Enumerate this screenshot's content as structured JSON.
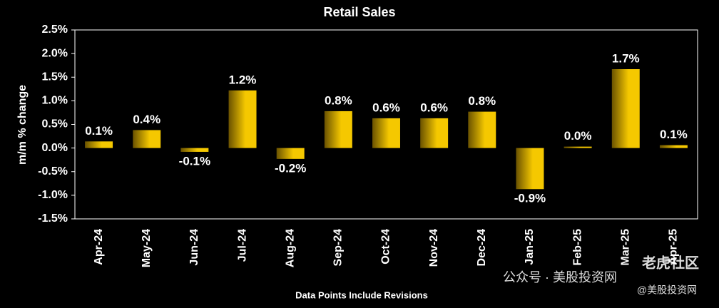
{
  "chart_data": {
    "type": "bar",
    "title": "Retail Sales",
    "ylabel": "m/m % change",
    "xlabel": "Data Points Include Revisions",
    "categories": [
      "Apr-24",
      "May-24",
      "Jun-24",
      "Jul-24",
      "Aug-24",
      "Sep-24",
      "Oct-24",
      "Nov-24",
      "Dec-24",
      "Jan-25",
      "Feb-25",
      "Mar-25",
      "Apr-25"
    ],
    "values": [
      0.14,
      0.38,
      -0.08,
      1.22,
      -0.23,
      0.78,
      0.63,
      0.63,
      0.77,
      -0.87,
      0.03,
      1.67,
      0.06
    ],
    "value_labels": [
      "0.1%",
      "0.4%",
      "-0.1%",
      "1.2%",
      "-0.2%",
      "0.8%",
      "0.6%",
      "0.6%",
      "0.8%",
      "-0.9%",
      "0.0%",
      "1.7%",
      "0.1%"
    ],
    "color": "#f5c800",
    "ylim": [
      -1.5,
      2.5
    ],
    "yticks": [
      {
        "value": -1.5,
        "label": "-1.5%"
      },
      {
        "value": -1.0,
        "label": "-1.0%"
      },
      {
        "value": -0.5,
        "label": "-0.5%"
      },
      {
        "value": 0,
        "label": "0.0%"
      },
      {
        "value": 0.5,
        "label": "0.5%"
      },
      {
        "value": 1.0,
        "label": "1.0%"
      },
      {
        "value": 1.5,
        "label": "1.5%"
      },
      {
        "value": 2.0,
        "label": "2.0%"
      },
      {
        "value": 2.5,
        "label": "2.5%"
      }
    ],
    "annotations": [
      "公众号 · 美股投资网",
      "老虎社区",
      "@美股投资网"
    ]
  }
}
